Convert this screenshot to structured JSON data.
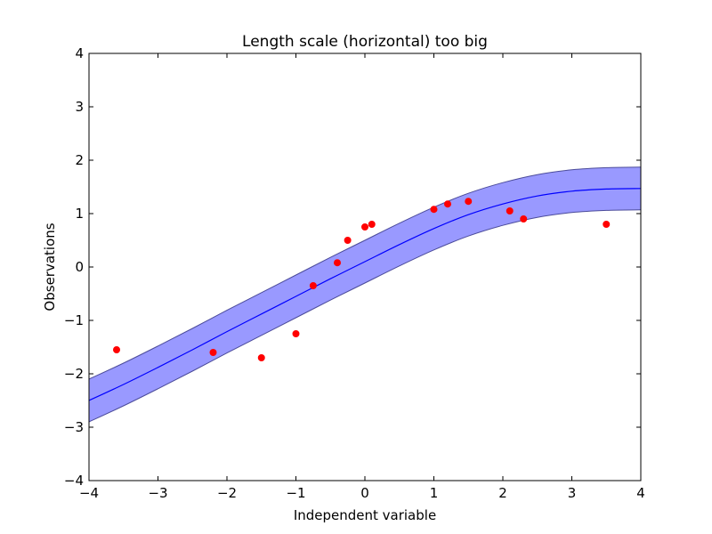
{
  "chart_data": {
    "type": "line",
    "title": "Length scale (horizontal) too big",
    "xlabel": "Independent variable",
    "ylabel": "Observations",
    "xlim": [
      -4,
      4
    ],
    "ylim": [
      -4,
      4
    ],
    "grid": false,
    "xticks": [
      -4,
      -3,
      -2,
      -1,
      0,
      1,
      2,
      3,
      4
    ],
    "yticks": [
      -4,
      -3,
      -2,
      -1,
      0,
      1,
      2,
      3,
      4
    ],
    "xtick_labels": [
      "−4",
      "−3",
      "−2",
      "−1",
      "0",
      "1",
      "2",
      "3",
      "4"
    ],
    "ytick_labels": [
      "−4",
      "−3",
      "−2",
      "−1",
      "0",
      "1",
      "2",
      "3",
      "4"
    ],
    "colors": {
      "mean_line": "#0000ff",
      "band_fill": "#0000ff",
      "band_edge": "#4b4b9a",
      "points": "#ff0000"
    },
    "series": [
      {
        "kind": "line",
        "x": [
          -4.0,
          -3.5,
          -3.0,
          -2.5,
          -2.0,
          -1.5,
          -1.0,
          -0.5,
          0.0,
          0.5,
          1.0,
          1.5,
          2.0,
          2.5,
          3.0,
          3.5,
          4.0
        ],
        "y": [
          -2.5,
          -2.2,
          -1.88,
          -1.55,
          -1.21,
          -0.88,
          -0.55,
          -0.22,
          0.1,
          0.42,
          0.72,
          0.98,
          1.18,
          1.33,
          1.42,
          1.46,
          1.47
        ]
      },
      {
        "kind": "band",
        "x": [
          -4.0,
          -3.5,
          -3.0,
          -2.5,
          -2.0,
          -1.5,
          -1.0,
          -0.5,
          0.0,
          0.5,
          1.0,
          1.5,
          2.0,
          2.5,
          3.0,
          3.5,
          4.0
        ],
        "upper": [
          -2.1,
          -1.8,
          -1.48,
          -1.15,
          -0.81,
          -0.48,
          -0.15,
          0.18,
          0.5,
          0.82,
          1.12,
          1.38,
          1.58,
          1.73,
          1.82,
          1.86,
          1.87
        ],
        "lower": [
          -2.9,
          -2.6,
          -2.28,
          -1.95,
          -1.61,
          -1.28,
          -0.95,
          -0.62,
          -0.3,
          0.02,
          0.32,
          0.58,
          0.78,
          0.93,
          1.02,
          1.06,
          1.07
        ]
      },
      {
        "kind": "scatter",
        "x": [
          -3.6,
          -2.2,
          -1.5,
          -1.0,
          -0.75,
          -0.4,
          -0.25,
          0.0,
          0.1,
          1.0,
          1.2,
          1.5,
          2.1,
          2.3,
          3.5
        ],
        "y": [
          -1.55,
          -1.6,
          -1.7,
          -1.25,
          -0.35,
          0.08,
          0.5,
          0.75,
          0.8,
          1.08,
          1.18,
          1.23,
          1.05,
          0.9,
          0.8
        ]
      }
    ]
  }
}
